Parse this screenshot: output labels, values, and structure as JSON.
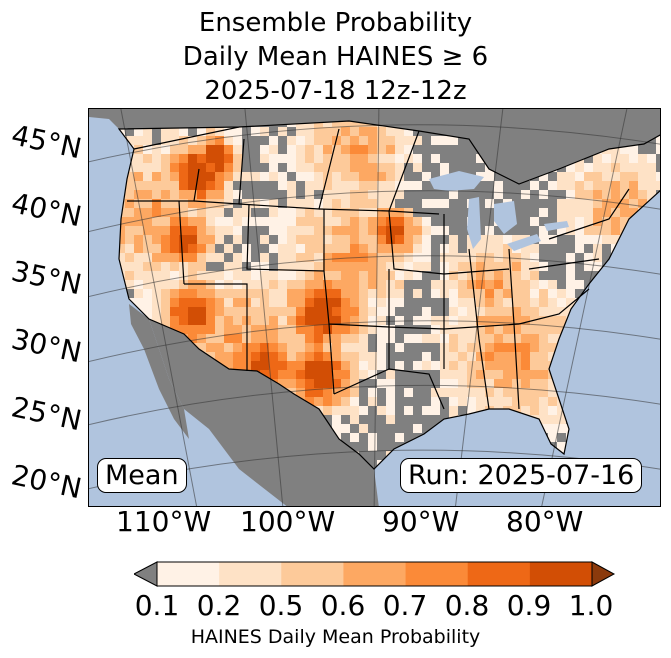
{
  "title": {
    "line1": "Ensemble Probability",
    "line2": "Daily Mean HAINES ≥ 6",
    "line3": "2025-07-18 12z-12z"
  },
  "map": {
    "region": "Contiguous United States",
    "lat_labels": [
      "45°N",
      "40°N",
      "35°N",
      "30°N",
      "25°N",
      "20°N"
    ],
    "lon_labels": [
      "110°W",
      "100°W",
      "90°W",
      "80°W"
    ],
    "stat_label": "Mean",
    "run_label": "Run: 2025-07-16",
    "colors": {
      "ocean": "#b0c4de",
      "below_threshold": "#808080",
      "bins": [
        "#fff2e6",
        "#fee2c6",
        "#fdca9a",
        "#fda862",
        "#fb8a38",
        "#ee6816",
        "#d24e05"
      ]
    }
  },
  "colorbar": {
    "ticks": [
      "0.1",
      "0.2",
      "0.5",
      "0.6",
      "0.7",
      "0.8",
      "0.9",
      "1.0"
    ],
    "label": "HAINES Daily Mean Probability",
    "under_color": "#808080",
    "over_color": "#8b3a0c"
  }
}
